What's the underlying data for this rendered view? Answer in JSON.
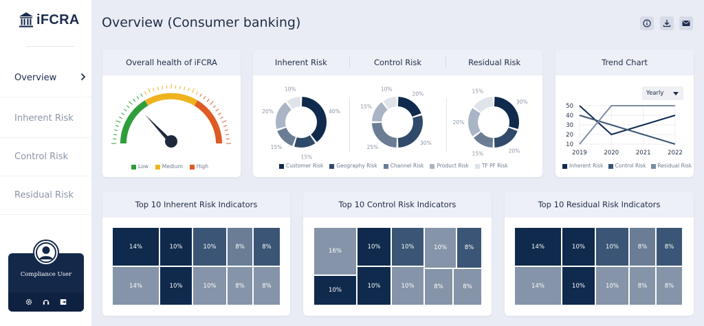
{
  "app": {
    "name": "iFCRA"
  },
  "sidebar": {
    "items": [
      {
        "label": "Overview",
        "active": true
      },
      {
        "label": "Inherent Risk"
      },
      {
        "label": "Control Risk"
      },
      {
        "label": "Residual Risk"
      }
    ],
    "user": {
      "name": "Compliance User",
      "actions": [
        "gear-icon",
        "headset-icon",
        "logout-icon"
      ]
    }
  },
  "header": {
    "title": "Overview (Consumer banking)",
    "buttons": [
      "info-icon",
      "download-icon",
      "mail-icon"
    ]
  },
  "health": {
    "title": "Overall health of iFCRA",
    "legend": [
      "Low",
      "Medium",
      "High"
    ],
    "colors": {
      "low": "#2e9e3a",
      "medium": "#efb320",
      "high": "#de5b24"
    }
  },
  "risk_donuts": {
    "tabs": [
      "Inherent Risk",
      "Control Risk",
      "Residual Risk"
    ],
    "legend": [
      "Customer Risk",
      "Geography Risk",
      "Channel Risk",
      "Product Risk",
      "TF PF Risk"
    ],
    "colors": [
      "#0f2a4d",
      "#2f4a6a",
      "#6a7d95",
      "#a9b4c4",
      "#dfe3ea"
    ],
    "charts": [
      {
        "labels": [
          "40%",
          "15%",
          "15%",
          "20%",
          "10%"
        ],
        "values": [
          40,
          15,
          15,
          20,
          10
        ]
      },
      {
        "labels": [
          "20%",
          "30%",
          "25%",
          "15%",
          "10%"
        ],
        "values": [
          20,
          30,
          25,
          15,
          10
        ]
      },
      {
        "labels": [
          "30%",
          "20%",
          "15%",
          "20%",
          "15%"
        ],
        "values": [
          30,
          20,
          15,
          20,
          15
        ]
      }
    ]
  },
  "trend": {
    "title": "Trend Chart",
    "period": "Yearly",
    "legend": [
      "Inherent Risk",
      "Control Risk",
      "Residual Risk"
    ]
  },
  "chart_data": {
    "type": "line",
    "x": [
      "2019",
      "2020",
      "2021",
      "2022"
    ],
    "yticks": [
      "50",
      "40",
      "30",
      "20",
      "10"
    ],
    "ylim": [
      10,
      50
    ],
    "series": [
      {
        "name": "Inherent Risk",
        "values": [
          50,
          20,
          30,
          40
        ],
        "color": "#0f2a4d"
      },
      {
        "name": "Control Risk",
        "values": [
          40,
          30,
          20,
          10
        ],
        "color": "#3a5575"
      },
      {
        "name": "Residual Risk",
        "values": [
          10,
          50,
          50,
          50
        ],
        "color": "#7b8ca2"
      }
    ]
  },
  "indicators": {
    "inherent": {
      "title": "Top 10 Inherent Risk Indicators",
      "cells": [
        "14%",
        "10%",
        "10%",
        "8%",
        "8%",
        "14%",
        "10%",
        "10%",
        "8%",
        "8%"
      ]
    },
    "control": {
      "title": "Top 10 Control Risk Indicators",
      "cells": [
        "16%",
        "10%",
        "10%",
        "10%",
        "8%",
        "10%",
        "10%",
        "10%",
        "8%",
        "8%"
      ]
    },
    "residual": {
      "title": "Top 10 Residual Risk Indicators",
      "cells": [
        "14%",
        "10%",
        "10%",
        "8%",
        "8%",
        "14%",
        "10%",
        "10%",
        "8%",
        "8%"
      ]
    }
  }
}
